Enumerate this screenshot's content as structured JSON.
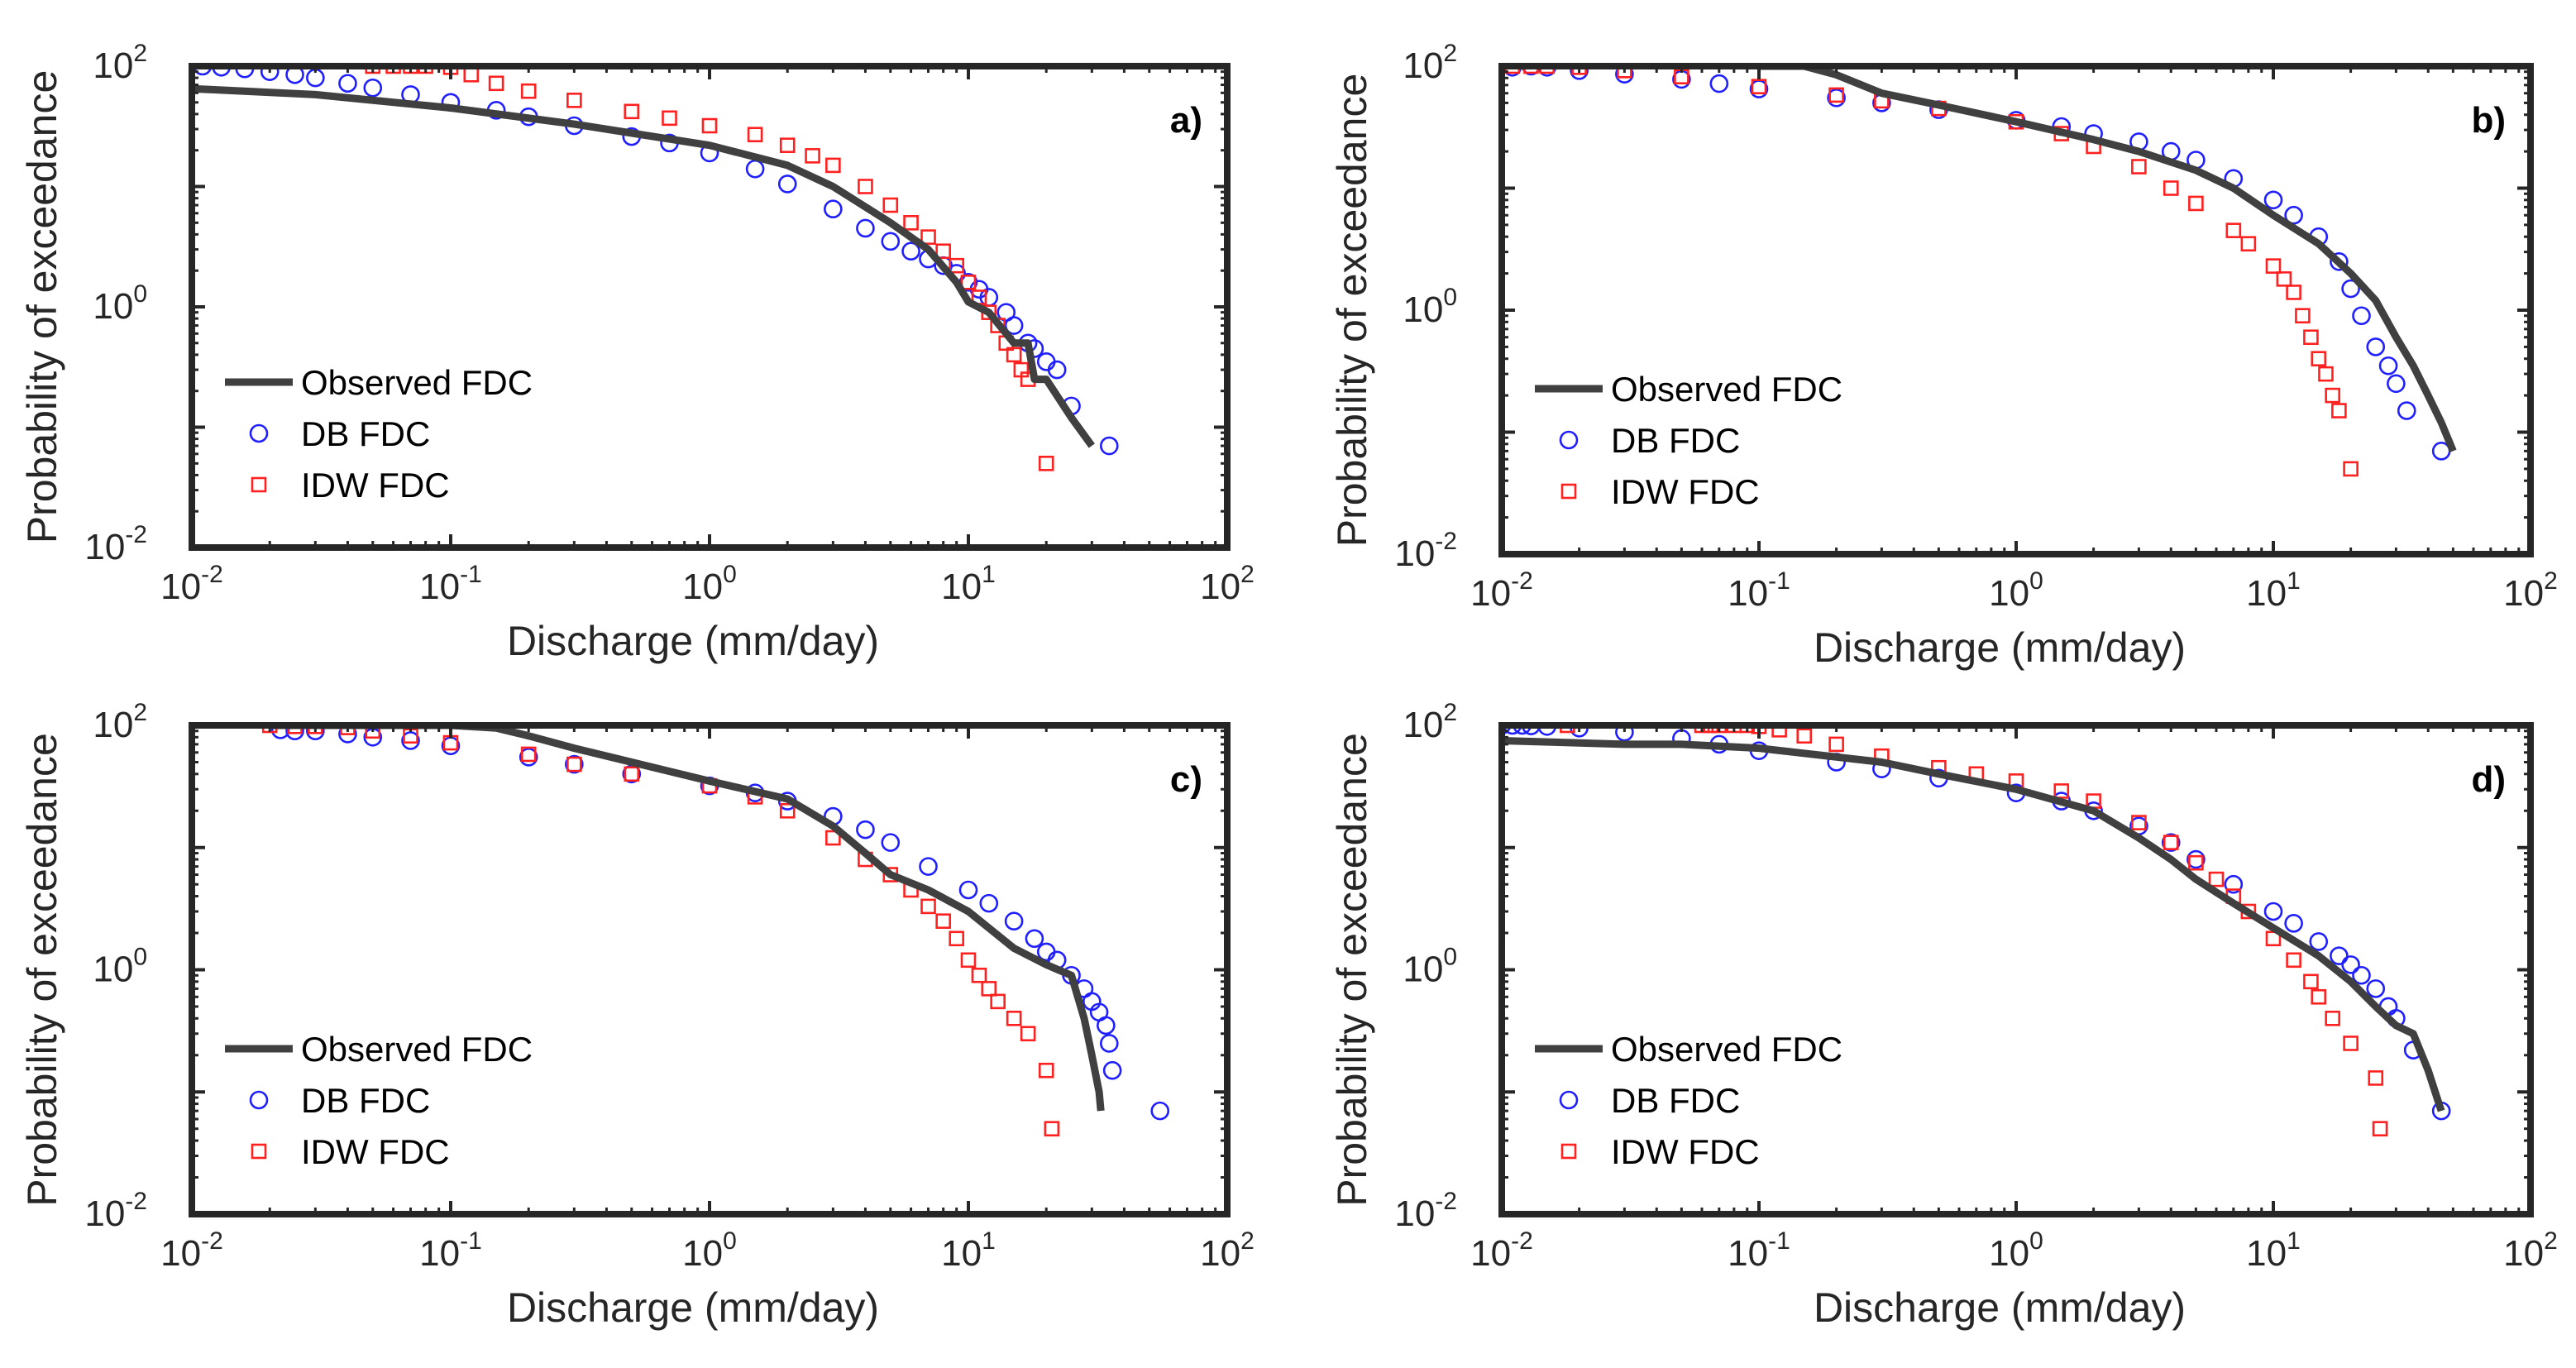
{
  "figure": {
    "type": "grid of 4 log-log charts"
  },
  "chart_data": [
    {
      "type": "line+scatter",
      "panel_label": "a)",
      "xlabel": "Discharge (mm/day)",
      "ylabel": "Probability of exceedance",
      "xscale": "log",
      "yscale": "log",
      "xlim": [
        0.01,
        100
      ],
      "ylim": [
        0.01,
        100
      ],
      "x_tick_labels": [
        {
          "base": "10",
          "exp": "-2"
        },
        {
          "base": "10",
          "exp": "-1"
        },
        {
          "base": "10",
          "exp": "0"
        },
        {
          "base": "10",
          "exp": "1"
        },
        {
          "base": "10",
          "exp": "2"
        }
      ],
      "y_tick_labels": [
        {
          "base": "10",
          "exp": "-2"
        },
        {
          "base": "10",
          "exp": "0"
        },
        {
          "base": "10",
          "exp": "2"
        }
      ],
      "legend_position": "bottom-left",
      "series": [
        {
          "name": "Observed FDC",
          "style": "line",
          "color": "#404040",
          "x": [
            0.01,
            0.03,
            0.1,
            0.3,
            1,
            2,
            3,
            5,
            7,
            9,
            10,
            12,
            15,
            17,
            18,
            20,
            25,
            30
          ],
          "y": [
            65,
            58,
            45,
            33,
            22,
            15,
            10,
            5,
            3,
            1.6,
            1.1,
            0.9,
            0.5,
            0.5,
            0.25,
            0.25,
            0.12,
            0.07
          ]
        },
        {
          "name": "DB FDC",
          "style": "circle",
          "color": "#1f1fff",
          "x": [
            0.011,
            0.013,
            0.016,
            0.02,
            0.025,
            0.03,
            0.04,
            0.05,
            0.07,
            0.1,
            0.15,
            0.2,
            0.3,
            0.5,
            0.7,
            1,
            1.5,
            2,
            3,
            4,
            5,
            6,
            7,
            8,
            9,
            10,
            11,
            12,
            14,
            15,
            17,
            18,
            20,
            22,
            25,
            35
          ],
          "y": [
            100,
            98,
            95,
            90,
            85,
            80,
            72,
            66,
            58,
            50,
            43,
            38,
            32,
            26,
            23,
            19,
            14,
            10.5,
            6.5,
            4.5,
            3.5,
            2.9,
            2.5,
            2.2,
            1.9,
            1.6,
            1.4,
            1.2,
            0.9,
            0.7,
            0.5,
            0.45,
            0.35,
            0.3,
            0.15,
            0.07
          ]
        },
        {
          "name": "IDW FDC",
          "style": "square",
          "color": "#ff2020",
          "x": [
            0.05,
            0.06,
            0.07,
            0.08,
            0.1,
            0.12,
            0.15,
            0.2,
            0.3,
            0.5,
            0.7,
            1,
            1.5,
            2,
            2.5,
            3,
            4,
            5,
            6,
            7,
            8,
            9,
            10,
            11,
            12,
            13,
            14,
            15,
            16,
            17,
            20
          ],
          "y": [
            100,
            100,
            100,
            100,
            98,
            85,
            72,
            62,
            52,
            42,
            37,
            32,
            27,
            22,
            18,
            15,
            10,
            7,
            5,
            3.8,
            2.9,
            2.2,
            1.6,
            1.2,
            0.9,
            0.7,
            0.5,
            0.4,
            0.3,
            0.25,
            0.05
          ]
        }
      ]
    },
    {
      "type": "line+scatter",
      "panel_label": "b)",
      "xlabel": "Discharge (mm/day)",
      "ylabel": "Probability of exceedance",
      "xscale": "log",
      "yscale": "log",
      "xlim": [
        0.01,
        100
      ],
      "ylim": [
        0.01,
        100
      ],
      "x_tick_labels": [
        {
          "base": "10",
          "exp": "-2"
        },
        {
          "base": "10",
          "exp": "-1"
        },
        {
          "base": "10",
          "exp": "0"
        },
        {
          "base": "10",
          "exp": "1"
        },
        {
          "base": "10",
          "exp": "2"
        }
      ],
      "y_tick_labels": [
        {
          "base": "10",
          "exp": "-2"
        },
        {
          "base": "10",
          "exp": "0"
        },
        {
          "base": "10",
          "exp": "2"
        }
      ],
      "legend_position": "bottom-left",
      "series": [
        {
          "name": "Observed FDC",
          "style": "line",
          "color": "#404040",
          "x": [
            0.1,
            0.15,
            0.2,
            0.3,
            0.5,
            1,
            2,
            3,
            5,
            7,
            10,
            15,
            20,
            25,
            30,
            35,
            40,
            45,
            50
          ],
          "y": [
            100,
            100,
            85,
            60,
            48,
            35,
            25,
            20,
            14,
            10,
            6,
            3.5,
            2,
            1.2,
            0.6,
            0.35,
            0.2,
            0.12,
            0.07
          ]
        },
        {
          "name": "DB FDC",
          "style": "circle",
          "color": "#1f1fff",
          "x": [
            0.011,
            0.013,
            0.015,
            0.02,
            0.03,
            0.05,
            0.07,
            0.1,
            0.2,
            0.3,
            0.5,
            1,
            1.5,
            2,
            3,
            4,
            5,
            7,
            10,
            12,
            15,
            18,
            20,
            22,
            25,
            28,
            30,
            33,
            45
          ],
          "y": [
            98,
            100,
            98,
            92,
            86,
            78,
            72,
            65,
            55,
            50,
            44,
            36,
            32,
            28,
            24,
            20,
            17,
            12,
            8,
            6,
            4,
            2.5,
            1.5,
            0.9,
            0.5,
            0.35,
            0.25,
            0.15,
            0.07
          ]
        },
        {
          "name": "IDW FDC",
          "style": "square",
          "color": "#ff2020",
          "x": [
            0.011,
            0.013,
            0.015,
            0.02,
            0.03,
            0.05,
            0.1,
            0.2,
            0.3,
            0.5,
            1,
            1.5,
            2,
            3,
            4,
            5,
            7,
            8,
            10,
            11,
            12,
            13,
            14,
            15,
            16,
            17,
            18,
            20
          ],
          "y": [
            100,
            100,
            100,
            98,
            92,
            82,
            68,
            58,
            52,
            45,
            35,
            28,
            22,
            15,
            10,
            7.5,
            4.5,
            3.5,
            2.3,
            1.8,
            1.4,
            0.9,
            0.6,
            0.4,
            0.3,
            0.2,
            0.15,
            0.05
          ]
        }
      ]
    },
    {
      "type": "line+scatter",
      "panel_label": "c)",
      "xlabel": "Discharge (mm/day)",
      "ylabel": "Probability of exceedance",
      "xscale": "log",
      "yscale": "log",
      "xlim": [
        0.01,
        100
      ],
      "ylim": [
        0.01,
        100
      ],
      "x_tick_labels": [
        {
          "base": "10",
          "exp": "-2"
        },
        {
          "base": "10",
          "exp": "-1"
        },
        {
          "base": "10",
          "exp": "0"
        },
        {
          "base": "10",
          "exp": "1"
        },
        {
          "base": "10",
          "exp": "2"
        }
      ],
      "y_tick_labels": [
        {
          "base": "10",
          "exp": "-2"
        },
        {
          "base": "10",
          "exp": "0"
        },
        {
          "base": "10",
          "exp": "2"
        }
      ],
      "legend_position": "bottom-left",
      "series": [
        {
          "name": "Observed FDC",
          "style": "line",
          "color": "#404040",
          "x": [
            0.02,
            0.05,
            0.1,
            0.15,
            0.2,
            0.3,
            0.5,
            1,
            2,
            3,
            4,
            5,
            7,
            10,
            15,
            20,
            25,
            28,
            30,
            32,
            32.5
          ],
          "y": [
            100,
            100,
            100,
            95,
            82,
            65,
            50,
            35,
            25,
            15,
            9,
            6,
            4.5,
            3,
            1.5,
            1.1,
            0.9,
            0.4,
            0.2,
            0.1,
            0.07
          ]
        },
        {
          "name": "DB FDC",
          "style": "circle",
          "color": "#1f1fff",
          "x": [
            0.022,
            0.025,
            0.03,
            0.04,
            0.05,
            0.07,
            0.1,
            0.2,
            0.3,
            0.5,
            1,
            1.5,
            2,
            3,
            4,
            5,
            7,
            10,
            12,
            15,
            18,
            20,
            22,
            25,
            28,
            30,
            32,
            34,
            35,
            36,
            55
          ],
          "y": [
            92,
            90,
            90,
            85,
            80,
            75,
            68,
            55,
            48,
            40,
            32,
            28,
            24,
            18,
            14,
            11,
            7,
            4.5,
            3.5,
            2.5,
            1.8,
            1.4,
            1.2,
            0.9,
            0.7,
            0.55,
            0.45,
            0.35,
            0.25,
            0.15,
            0.07
          ]
        },
        {
          "name": "IDW FDC",
          "style": "square",
          "color": "#ff2020",
          "x": [
            0.02,
            0.025,
            0.03,
            0.04,
            0.05,
            0.07,
            0.1,
            0.2,
            0.3,
            0.5,
            1,
            1.5,
            2,
            3,
            4,
            5,
            6,
            7,
            8,
            9,
            10,
            11,
            12,
            13,
            15,
            17,
            20,
            21
          ],
          "y": [
            100,
            98,
            98,
            96,
            90,
            82,
            72,
            58,
            48,
            40,
            32,
            26,
            20,
            12,
            8,
            6,
            4.5,
            3.3,
            2.5,
            1.8,
            1.2,
            0.9,
            0.7,
            0.55,
            0.4,
            0.3,
            0.15,
            0.05
          ]
        }
      ]
    },
    {
      "type": "line+scatter",
      "panel_label": "d)",
      "xlabel": "Discharge (mm/day)",
      "ylabel": "Probability of exceedance",
      "xscale": "log",
      "yscale": "log",
      "xlim": [
        0.01,
        100
      ],
      "ylim": [
        0.01,
        100
      ],
      "x_tick_labels": [
        {
          "base": "10",
          "exp": "-2"
        },
        {
          "base": "10",
          "exp": "-1"
        },
        {
          "base": "10",
          "exp": "0"
        },
        {
          "base": "10",
          "exp": "1"
        },
        {
          "base": "10",
          "exp": "2"
        }
      ],
      "y_tick_labels": [
        {
          "base": "10",
          "exp": "-2"
        },
        {
          "base": "10",
          "exp": "0"
        },
        {
          "base": "10",
          "exp": "2"
        }
      ],
      "legend_position": "bottom-left",
      "series": [
        {
          "name": "Observed FDC",
          "style": "line",
          "color": "#404040",
          "x": [
            0.01,
            0.03,
            0.05,
            0.1,
            0.3,
            0.5,
            1,
            2,
            3,
            4,
            5,
            7,
            10,
            15,
            20,
            25,
            30,
            35,
            40,
            45
          ],
          "y": [
            75,
            70,
            70,
            65,
            50,
            40,
            30,
            20,
            12,
            8,
            5.5,
            3.5,
            2.2,
            1.3,
            0.8,
            0.5,
            0.35,
            0.3,
            0.15,
            0.07
          ]
        },
        {
          "name": "DB FDC",
          "style": "circle",
          "color": "#1f1fff",
          "x": [
            0.01,
            0.011,
            0.012,
            0.013,
            0.015,
            0.02,
            0.03,
            0.05,
            0.07,
            0.1,
            0.2,
            0.3,
            0.5,
            1,
            1.5,
            2,
            3,
            4,
            5,
            7,
            10,
            12,
            15,
            18,
            20,
            22,
            25,
            28,
            30,
            35,
            45
          ],
          "y": [
            100,
            100,
            100,
            99,
            98,
            95,
            88,
            78,
            70,
            62,
            50,
            44,
            37,
            28,
            24,
            20,
            15,
            11,
            8,
            5,
            3,
            2.4,
            1.7,
            1.3,
            1.1,
            0.9,
            0.7,
            0.5,
            0.4,
            0.22,
            0.07
          ]
        },
        {
          "name": "IDW FDC",
          "style": "square",
          "color": "#ff2020",
          "x": [
            0.018,
            0.06,
            0.065,
            0.07,
            0.08,
            0.09,
            0.1,
            0.12,
            0.15,
            0.2,
            0.3,
            0.5,
            0.7,
            1,
            1.5,
            2,
            3,
            4,
            5,
            6,
            7,
            8,
            10,
            12,
            14,
            15,
            17,
            20,
            25,
            26
          ],
          "y": [
            100,
            100,
            100,
            100,
            100,
            100,
            98,
            92,
            82,
            70,
            56,
            45,
            40,
            35,
            29,
            24,
            16,
            11,
            7.5,
            5.5,
            4,
            3,
            1.8,
            1.2,
            0.8,
            0.6,
            0.4,
            0.25,
            0.13,
            0.05
          ]
        }
      ]
    }
  ]
}
